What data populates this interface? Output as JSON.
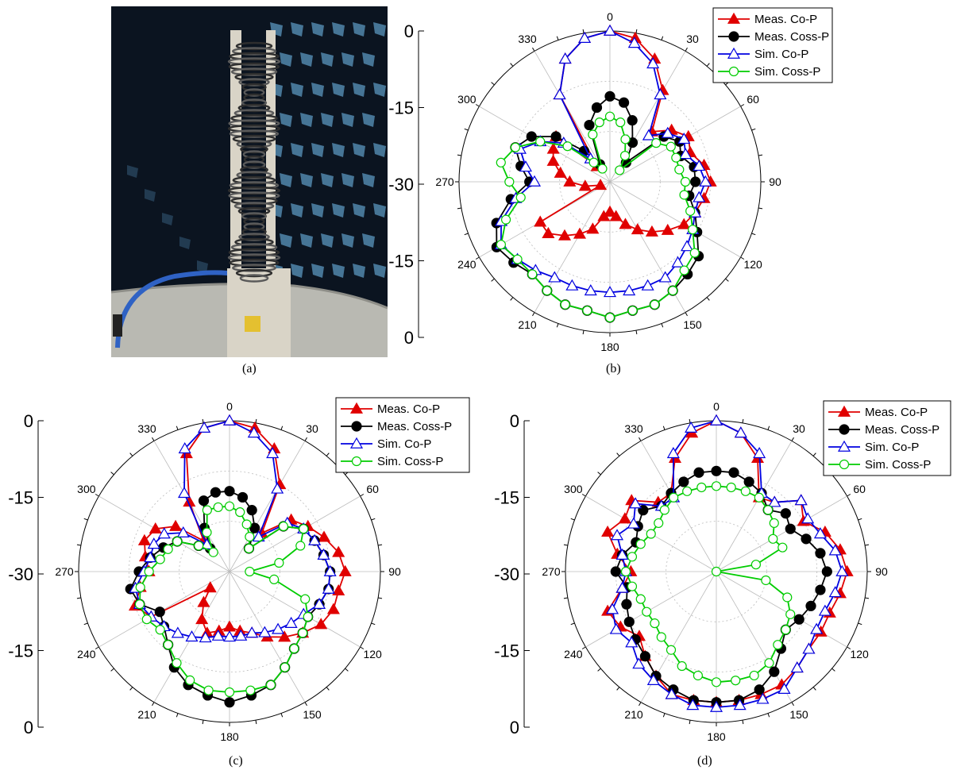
{
  "captions": {
    "a": "(a)",
    "b": "(b)",
    "c": "(c)",
    "d": "(d)"
  },
  "photo": {
    "description_icon": "antenna-photo-icon",
    "colors": {
      "wall": "#0b1420",
      "absorber": "#4d7fa3",
      "helix": "#4a4a4a",
      "support": "#d9d4c7",
      "table": "#b9b9b2",
      "cable": "#2f62c4"
    }
  },
  "series_styles": [
    {
      "key": "meas_co",
      "name": "Meas. Co-P",
      "color": "#e00000",
      "marker": "triangle-filled"
    },
    {
      "key": "meas_cross",
      "name": "Meas. Coss-P",
      "color": "#000000",
      "marker": "circle-filled"
    },
    {
      "key": "sim_co",
      "name": "Sim. Co-P",
      "color": "#0000e0",
      "marker": "triangle-open"
    },
    {
      "key": "sim_cross",
      "name": "Sim. Coss-P",
      "color": "#00cc00",
      "marker": "circle-open"
    }
  ],
  "chart_data": [
    {
      "panel": "b",
      "type": "polar-line",
      "radial_ticks": [
        "0",
        "-15",
        "-30",
        "-15",
        "0"
      ],
      "rlim": [
        -30,
        0
      ],
      "angle_labels": [
        "0",
        "30",
        "60",
        "90",
        "120",
        "150",
        "180",
        "210",
        "240",
        "270",
        "300",
        "330"
      ],
      "theta": [
        0,
        10,
        20,
        30,
        40,
        50,
        60,
        70,
        80,
        90,
        100,
        110,
        120,
        130,
        140,
        150,
        160,
        170,
        180,
        190,
        200,
        210,
        220,
        230,
        240,
        250,
        260,
        270,
        280,
        290,
        300,
        310,
        320,
        330,
        340,
        350
      ],
      "legend": "top-right",
      "series": [
        {
          "name": "Meas. Co-P",
          "values": [
            0,
            -1,
            -4,
            -9,
            -17,
            -14,
            -12,
            -13,
            -11,
            -10,
            -11,
            -12,
            -13,
            -15,
            -17,
            -19,
            -21,
            -23,
            -24,
            -23,
            -20,
            -18,
            -16,
            -14,
            -14,
            -28,
            -25,
            -22,
            -20,
            -18,
            -17,
            -16,
            -26,
            -10,
            -4,
            -1
          ]
        },
        {
          "name": "Meas. Coss-P",
          "values": [
            -13,
            -14,
            -17,
            -21,
            -25,
            -16,
            -14,
            -15,
            -13,
            -13,
            -14,
            -12,
            -10,
            -7,
            -6,
            -5,
            -4,
            -4,
            -3,
            -4,
            -4,
            -5,
            -6,
            -5,
            -4,
            -6,
            -10,
            -14,
            -12,
            -10,
            -12,
            -16,
            -22,
            -26,
            -18,
            -15
          ]
        },
        {
          "name": "Sim. Co-P",
          "values": [
            0,
            -2,
            -5,
            -10,
            -18,
            -15,
            -13,
            -14,
            -12,
            -11,
            -12,
            -12,
            -11,
            -10,
            -9,
            -8,
            -8,
            -8,
            -8,
            -8,
            -8,
            -8,
            -7,
            -6,
            -5,
            -7,
            -11,
            -15,
            -13,
            -11,
            -14,
            -18,
            -24,
            -10,
            -4,
            -1
          ]
        },
        {
          "name": "Sim. Coss-P",
          "values": [
            -17,
            -18,
            -21,
            -24,
            -27,
            -18,
            -16,
            -16,
            -16,
            -15,
            -15,
            -13,
            -11,
            -8,
            -7,
            -5,
            -4,
            -4,
            -3,
            -4,
            -4,
            -5,
            -6,
            -6,
            -5,
            -8,
            -12,
            -10,
            -8,
            -10,
            -14,
            -19,
            -25,
            -27,
            -20,
            -18
          ]
        }
      ]
    },
    {
      "panel": "c",
      "type": "polar-line",
      "radial_ticks": [
        "0",
        "-15",
        "-30",
        "-15",
        "0"
      ],
      "rlim": [
        -30,
        0
      ],
      "angle_labels": [
        "0",
        "30",
        "60",
        "90",
        "120",
        "150",
        "180",
        "210",
        "240",
        "270",
        "300",
        "330"
      ],
      "theta": [
        0,
        10,
        20,
        30,
        40,
        50,
        60,
        70,
        80,
        90,
        100,
        110,
        120,
        130,
        140,
        150,
        160,
        170,
        180,
        190,
        200,
        210,
        220,
        230,
        240,
        250,
        260,
        270,
        280,
        290,
        300,
        310,
        320,
        330,
        340,
        350
      ],
      "legend": "top-right",
      "series": [
        {
          "name": "Meas. Co-P",
          "values": [
            0,
            -1,
            -4,
            -10,
            -20,
            -14,
            -12,
            -10,
            -8,
            -7,
            -8,
            -8,
            -9,
            -11,
            -13,
            -15,
            -17,
            -18,
            -19,
            -18,
            -17,
            -19,
            -22,
            -25,
            -12,
            -10,
            -12,
            -14,
            -13,
            -12,
            -13,
            -16,
            -22,
            -14,
            -5,
            -1
          ]
        },
        {
          "name": "Meas. Coss-P",
          "values": [
            -14,
            -15,
            -17,
            -20,
            -24,
            -16,
            -13,
            -12,
            -11,
            -10,
            -10,
            -11,
            -12,
            -11,
            -10,
            -8,
            -6,
            -5,
            -4,
            -5,
            -6,
            -8,
            -11,
            -13,
            -14,
            -11,
            -10,
            -12,
            -14,
            -16,
            -18,
            -22,
            -24,
            -20,
            -15,
            -14
          ]
        },
        {
          "name": "Sim. Co-P",
          "values": [
            0,
            -2,
            -5,
            -11,
            -21,
            -15,
            -13,
            -12,
            -11,
            -10,
            -10,
            -11,
            -13,
            -14,
            -15,
            -16,
            -17,
            -17,
            -17,
            -17,
            -16,
            -15,
            -14,
            -13,
            -12,
            -11,
            -11,
            -13,
            -14,
            -14,
            -15,
            -18,
            -23,
            -12,
            -4,
            -1
          ]
        },
        {
          "name": "Sim. Coss-P",
          "values": [
            -17,
            -18,
            -20,
            -22,
            -24,
            -16,
            -13,
            -15,
            -20,
            -26,
            -21,
            -14,
            -12,
            -11,
            -10,
            -8,
            -6,
            -6,
            -6,
            -6,
            -7,
            -9,
            -11,
            -12,
            -11,
            -11,
            -12,
            -14,
            -16,
            -17,
            -18,
            -22,
            -25,
            -21,
            -17,
            -17
          ]
        }
      ]
    },
    {
      "panel": "d",
      "type": "polar-line",
      "radial_ticks": [
        "0",
        "-15",
        "-30",
        "-15",
        "0"
      ],
      "rlim": [
        -30,
        0
      ],
      "angle_labels": [
        "0",
        "30",
        "60",
        "90",
        "120",
        "150",
        "180",
        "210",
        "240",
        "270",
        "300",
        "330"
      ],
      "theta": [
        0,
        10,
        20,
        30,
        40,
        50,
        60,
        70,
        80,
        90,
        100,
        110,
        120,
        130,
        140,
        150,
        160,
        170,
        180,
        190,
        200,
        210,
        220,
        230,
        240,
        250,
        260,
        270,
        280,
        290,
        300,
        310,
        320,
        330,
        340,
        350
      ],
      "legend": "top-right",
      "series": [
        {
          "name": "Meas. Co-P",
          "values": [
            0,
            -2,
            -6,
            -13,
            -12,
            -8,
            -10,
            -7,
            -5,
            -4,
            -5,
            -6,
            -6,
            -6,
            -5,
            -4,
            -4,
            -4,
            -4,
            -4,
            -4,
            -6,
            -8,
            -10,
            -8,
            -7,
            -11,
            -13,
            -10,
            -7,
            -9,
            -8,
            -12,
            -12,
            -6,
            -2
          ]
        },
        {
          "name": "Meas. Coss-P",
          "values": [
            -10,
            -10,
            -11,
            -12,
            -14,
            -12,
            -13,
            -11,
            -9,
            -8,
            -9,
            -10,
            -11,
            -12,
            -10,
            -7,
            -5,
            -4,
            -4,
            -4,
            -5,
            -6,
            -8,
            -9,
            -10,
            -11,
            -12,
            -10,
            -11,
            -13,
            -12,
            -11,
            -13,
            -12,
            -11,
            -10
          ]
        },
        {
          "name": "Sim. Co-P",
          "values": [
            0,
            -2,
            -5,
            -12,
            -12,
            -8,
            -9,
            -8,
            -6,
            -5,
            -6,
            -7,
            -7,
            -6,
            -5,
            -3,
            -3,
            -3,
            -3,
            -3,
            -4,
            -5,
            -6,
            -8,
            -7,
            -8,
            -11,
            -12,
            -11,
            -9,
            -11,
            -9,
            -13,
            -13,
            -5,
            -1
          ]
        },
        {
          "name": "Sim. Coss-P",
          "values": [
            -13,
            -13,
            -13,
            -13,
            -14,
            -15,
            -17,
            -16,
            -22,
            -30,
            -20,
            -15,
            -13,
            -12,
            -11,
            -9,
            -8,
            -8,
            -8,
            -9,
            -10,
            -12,
            -13,
            -14,
            -14,
            -14,
            -13,
            -12,
            -13,
            -14,
            -15,
            -15,
            -14,
            -13,
            -13,
            -13
          ]
        }
      ]
    }
  ]
}
